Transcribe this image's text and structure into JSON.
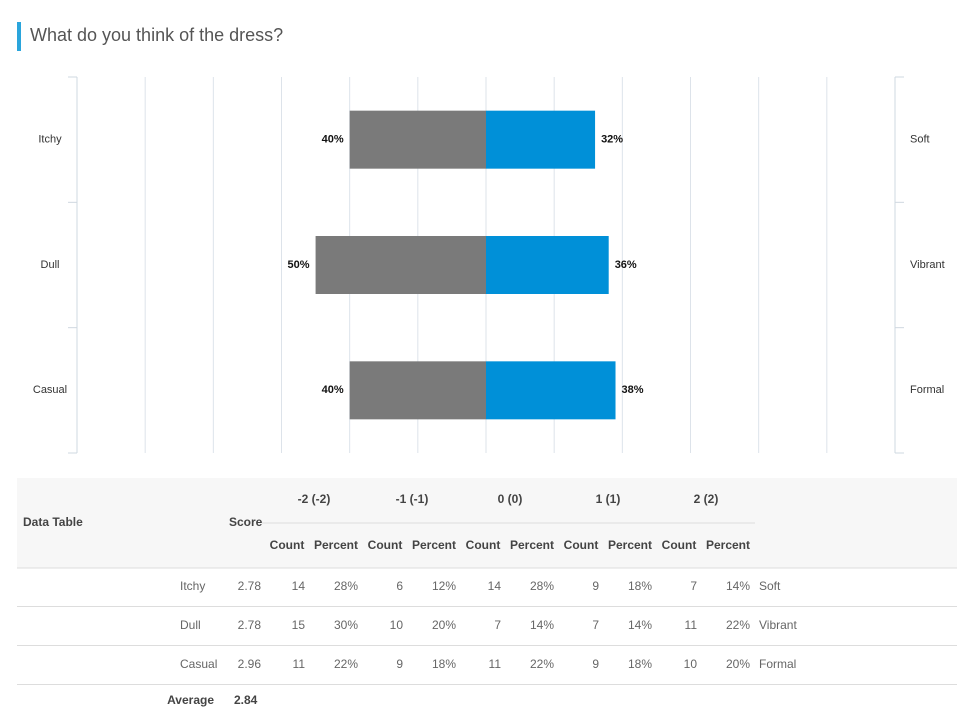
{
  "chart_data": {
    "type": "diverging_bar",
    "title": "What do you think of the dress?",
    "categories": [
      "Itchy",
      "Dull",
      "Casual"
    ],
    "categories_right": [
      "Soft",
      "Vibrant",
      "Formal"
    ],
    "series": [
      {
        "color": "#7a7a7a",
        "values": [
          40,
          50,
          40
        ],
        "value_labels": [
          "40%",
          "50%",
          "40%"
        ]
      },
      {
        "color": "#0090d8",
        "values": [
          32,
          36,
          38
        ],
        "value_labels": [
          "32%",
          "36%",
          "38%"
        ]
      }
    ],
    "xlim": [
      -120,
      120
    ],
    "xticks": [
      -120,
      -100,
      -80,
      -60,
      -40,
      -20,
      0,
      20,
      40,
      60,
      80,
      100,
      120
    ],
    "grid": true
  },
  "table": {
    "title": "Data Table",
    "score_header": "Score",
    "groups": [
      "-2 (-2)",
      "-1 (-1)",
      "0 (0)",
      "1 (1)",
      "2 (2)"
    ],
    "subheaders": [
      "Count",
      "Percent"
    ],
    "rows": [
      {
        "label": "Itchy",
        "score": "2.78",
        "cells": [
          "14",
          "28%",
          "6",
          "12%",
          "14",
          "28%",
          "9",
          "18%",
          "7",
          "14%"
        ],
        "right_label": "Soft"
      },
      {
        "label": "Dull",
        "score": "2.78",
        "cells": [
          "15",
          "30%",
          "10",
          "20%",
          "7",
          "14%",
          "7",
          "14%",
          "11",
          "22%"
        ],
        "right_label": "Vibrant"
      },
      {
        "label": "Casual",
        "score": "2.96",
        "cells": [
          "11",
          "22%",
          "9",
          "18%",
          "11",
          "22%",
          "9",
          "18%",
          "10",
          "20%"
        ],
        "right_label": "Formal"
      }
    ],
    "average": {
      "label": "Average",
      "value": "2.84"
    }
  }
}
